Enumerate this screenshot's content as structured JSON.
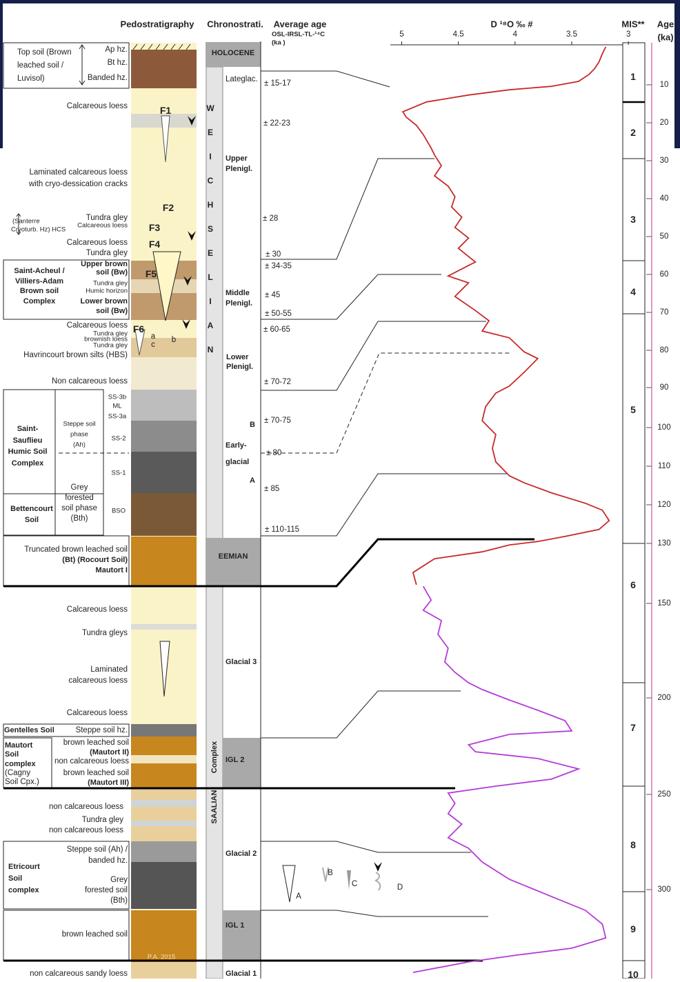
{
  "header": {
    "pedostratigraphy": "Pedostratigraphy",
    "chronostratigraphy": "Chronostrati.",
    "average_age": "Average age",
    "dating": "OSL-IRSL-TL-¹⁴C",
    "age_unit_left": "(ka )",
    "isotope": "D ¹⁸O ‰ #",
    "mis": "MIS**",
    "age": "Age",
    "age_unit": "(ka)"
  },
  "descriptions": [
    "Top soil (Brown",
    "leached soil /",
    "Luvisol)",
    "Ap hz.",
    "Bt hz.",
    "Banded hz.",
    "Calcareous loess",
    "Laminated calcareous loess",
    "with cryo-dessication cracks",
    "(Santerre",
    "Cryoturb. Hz) HCS",
    "Tundra gley",
    "Calcareous loess",
    "Calcareous loess",
    "Tundra gley",
    "Saint-Acheul /",
    "Villiers-Adam",
    "Brown soil",
    "Complex",
    "Upper brown",
    "soil (Bw)",
    "Tundra gley",
    "Humic horizon",
    "Lower brown",
    "soil (Bw)",
    "Calcareous loess",
    "Tundra gley",
    "brownish loess",
    "Tundra gley",
    "Havrincourt brown silts (HBS)",
    "Non calcareous loess",
    "Saint-",
    "Sauflieu",
    "Humic Soil",
    "Complex",
    "Steppe soil",
    "phase",
    "(Ah)",
    "Grey",
    "forested",
    "soil phase",
    "(Bth)",
    "SS-3b",
    "ML",
    "SS-3a",
    "SS-2",
    "SS-1",
    "BSO",
    "Bettencourt",
    "Soil",
    "Truncated brown leached soil",
    "(Bt) (Rocourt Soil)",
    "Mautort I",
    "Calcareous loess",
    "Tundra gleys",
    "Laminated",
    "calcareous loess",
    "Calcareous loess",
    "Gentelles Soil",
    "Steppe soil hz.",
    "Mautort",
    "Soil",
    "complex",
    "(Cagny",
    "Soil Cpx.)",
    "brown leached soil",
    "(Mautort II)",
    "non calcareous loess",
    "brown leached soil",
    "(Mautort III)",
    "non calcareous loess",
    "Tundra gley",
    "non calcareous loess",
    "Steppe soil (Ah) /",
    "banded hz.",
    "Grey",
    "forested soil",
    "(Bth)",
    "Etricourt",
    "Soil",
    "complex",
    "brown leached soil",
    "non calcareous sandy loess"
  ],
  "column_labels": [
    "F1",
    "F2",
    "F3",
    "F4",
    "F5",
    "F6",
    "a",
    "b",
    "c",
    "P.A. 2015"
  ],
  "chronostratigraphy": [
    "HOLOCENE",
    "WEICHSELIAN",
    "Lateglac.",
    "Upper",
    "Plenigl.",
    "Middle",
    "Plenigl.",
    "Lower",
    "Plenigl.",
    "B",
    "Early-",
    "glacial",
    "A",
    "EEMIAN",
    "Glacial 3",
    "IGL 2",
    "Complex",
    "SAALIAN",
    "Glacial 2",
    "IGL 1",
    "Glacial 1"
  ],
  "average_ages": [
    "± 15-17",
    "± 22-23",
    "± 28",
    "± 30",
    "± 34-35",
    "± 45",
    "± 50-55",
    "± 60-65",
    "± 70-72",
    "± 70-75",
    "± 80",
    "± 85",
    "± 110-115"
  ],
  "mis": [
    "1",
    "2",
    "3",
    "4",
    "5",
    "6",
    "7",
    "8",
    "9",
    "10"
  ],
  "legend": [
    "A",
    "B",
    "C",
    "D"
  ],
  "chart_data": {
    "type": "line",
    "xlim": [
      5.1,
      3.05
    ],
    "xticks": [
      5,
      4.5,
      4,
      3.5,
      3
    ],
    "age_ticks": [
      10,
      20,
      30,
      40,
      50,
      60,
      70,
      80,
      90,
      100,
      110,
      120,
      130,
      150,
      200,
      250,
      300
    ],
    "series": [
      {
        "color": "#c62828",
        "age": [
          0,
          1.8,
          4.0,
          5.8,
          7.3,
          9.1,
          10.4,
          11.3,
          12.7,
          14.5,
          17.1,
          18.5,
          20.7,
          23.1,
          26.7,
          28.5,
          31.3,
          34.0,
          36.7,
          39.5,
          42.2,
          44.9,
          47.6,
          50.4,
          53.1,
          56.7,
          60.4,
          62.2,
          65.8,
          69.5,
          72.2,
          74.9,
          76.7,
          80.4,
          82.2,
          85.9,
          89.6,
          91.4,
          94.8,
          98.3,
          101.8,
          105.4,
          108.9,
          112.5,
          114.3,
          116.9,
          119.6,
          121.4,
          124.1,
          126.4,
          128.2,
          129.5,
          130.5,
          132.8,
          135.1,
          139.7,
          143.8
        ],
        "values": [
          3.2,
          3.23,
          3.26,
          3.3,
          3.35,
          3.44,
          3.68,
          4.05,
          4.41,
          4.78,
          4.99,
          4.96,
          4.87,
          4.81,
          4.74,
          4.71,
          4.65,
          4.71,
          4.59,
          4.53,
          4.56,
          4.47,
          4.53,
          4.41,
          4.5,
          4.35,
          4.59,
          4.41,
          4.53,
          4.35,
          4.23,
          4.29,
          4.05,
          3.92,
          3.8,
          3.92,
          4.05,
          4.17,
          4.26,
          4.29,
          4.17,
          4.2,
          4.17,
          4.05,
          3.92,
          3.68,
          3.38,
          3.23,
          3.17,
          3.26,
          3.56,
          3.8,
          4.05,
          4.29,
          4.71,
          4.9,
          4.87
        ]
      },
      {
        "color": "#b53ad8",
        "age": [
          144.3,
          148.9,
          153.6,
          159.1,
          166.4,
          173.7,
          181.0,
          186.5,
          192.0,
          195.6,
          201.1,
          206.4,
          211.8,
          217.1,
          218.9,
          224.3,
          227.9,
          231.4,
          236.8,
          242.1,
          245.7,
          249.3,
          254.7,
          260.1,
          265.6,
          272.8,
          278.3,
          285.5,
          294.6,
          303.6,
          310.9,
          318.1,
          325.4,
          330.8,
          334.4,
          338.0,
          343.5
        ],
        "values": [
          4.81,
          4.74,
          4.81,
          4.65,
          4.68,
          4.59,
          4.62,
          4.53,
          4.41,
          4.29,
          4.05,
          3.8,
          3.56,
          3.5,
          4.05,
          4.41,
          4.35,
          3.8,
          3.44,
          3.68,
          4.17,
          4.59,
          4.53,
          4.59,
          4.47,
          4.59,
          4.41,
          4.29,
          4.05,
          3.68,
          3.38,
          3.23,
          3.2,
          3.5,
          3.98,
          4.41,
          4.9
        ]
      }
    ]
  }
}
